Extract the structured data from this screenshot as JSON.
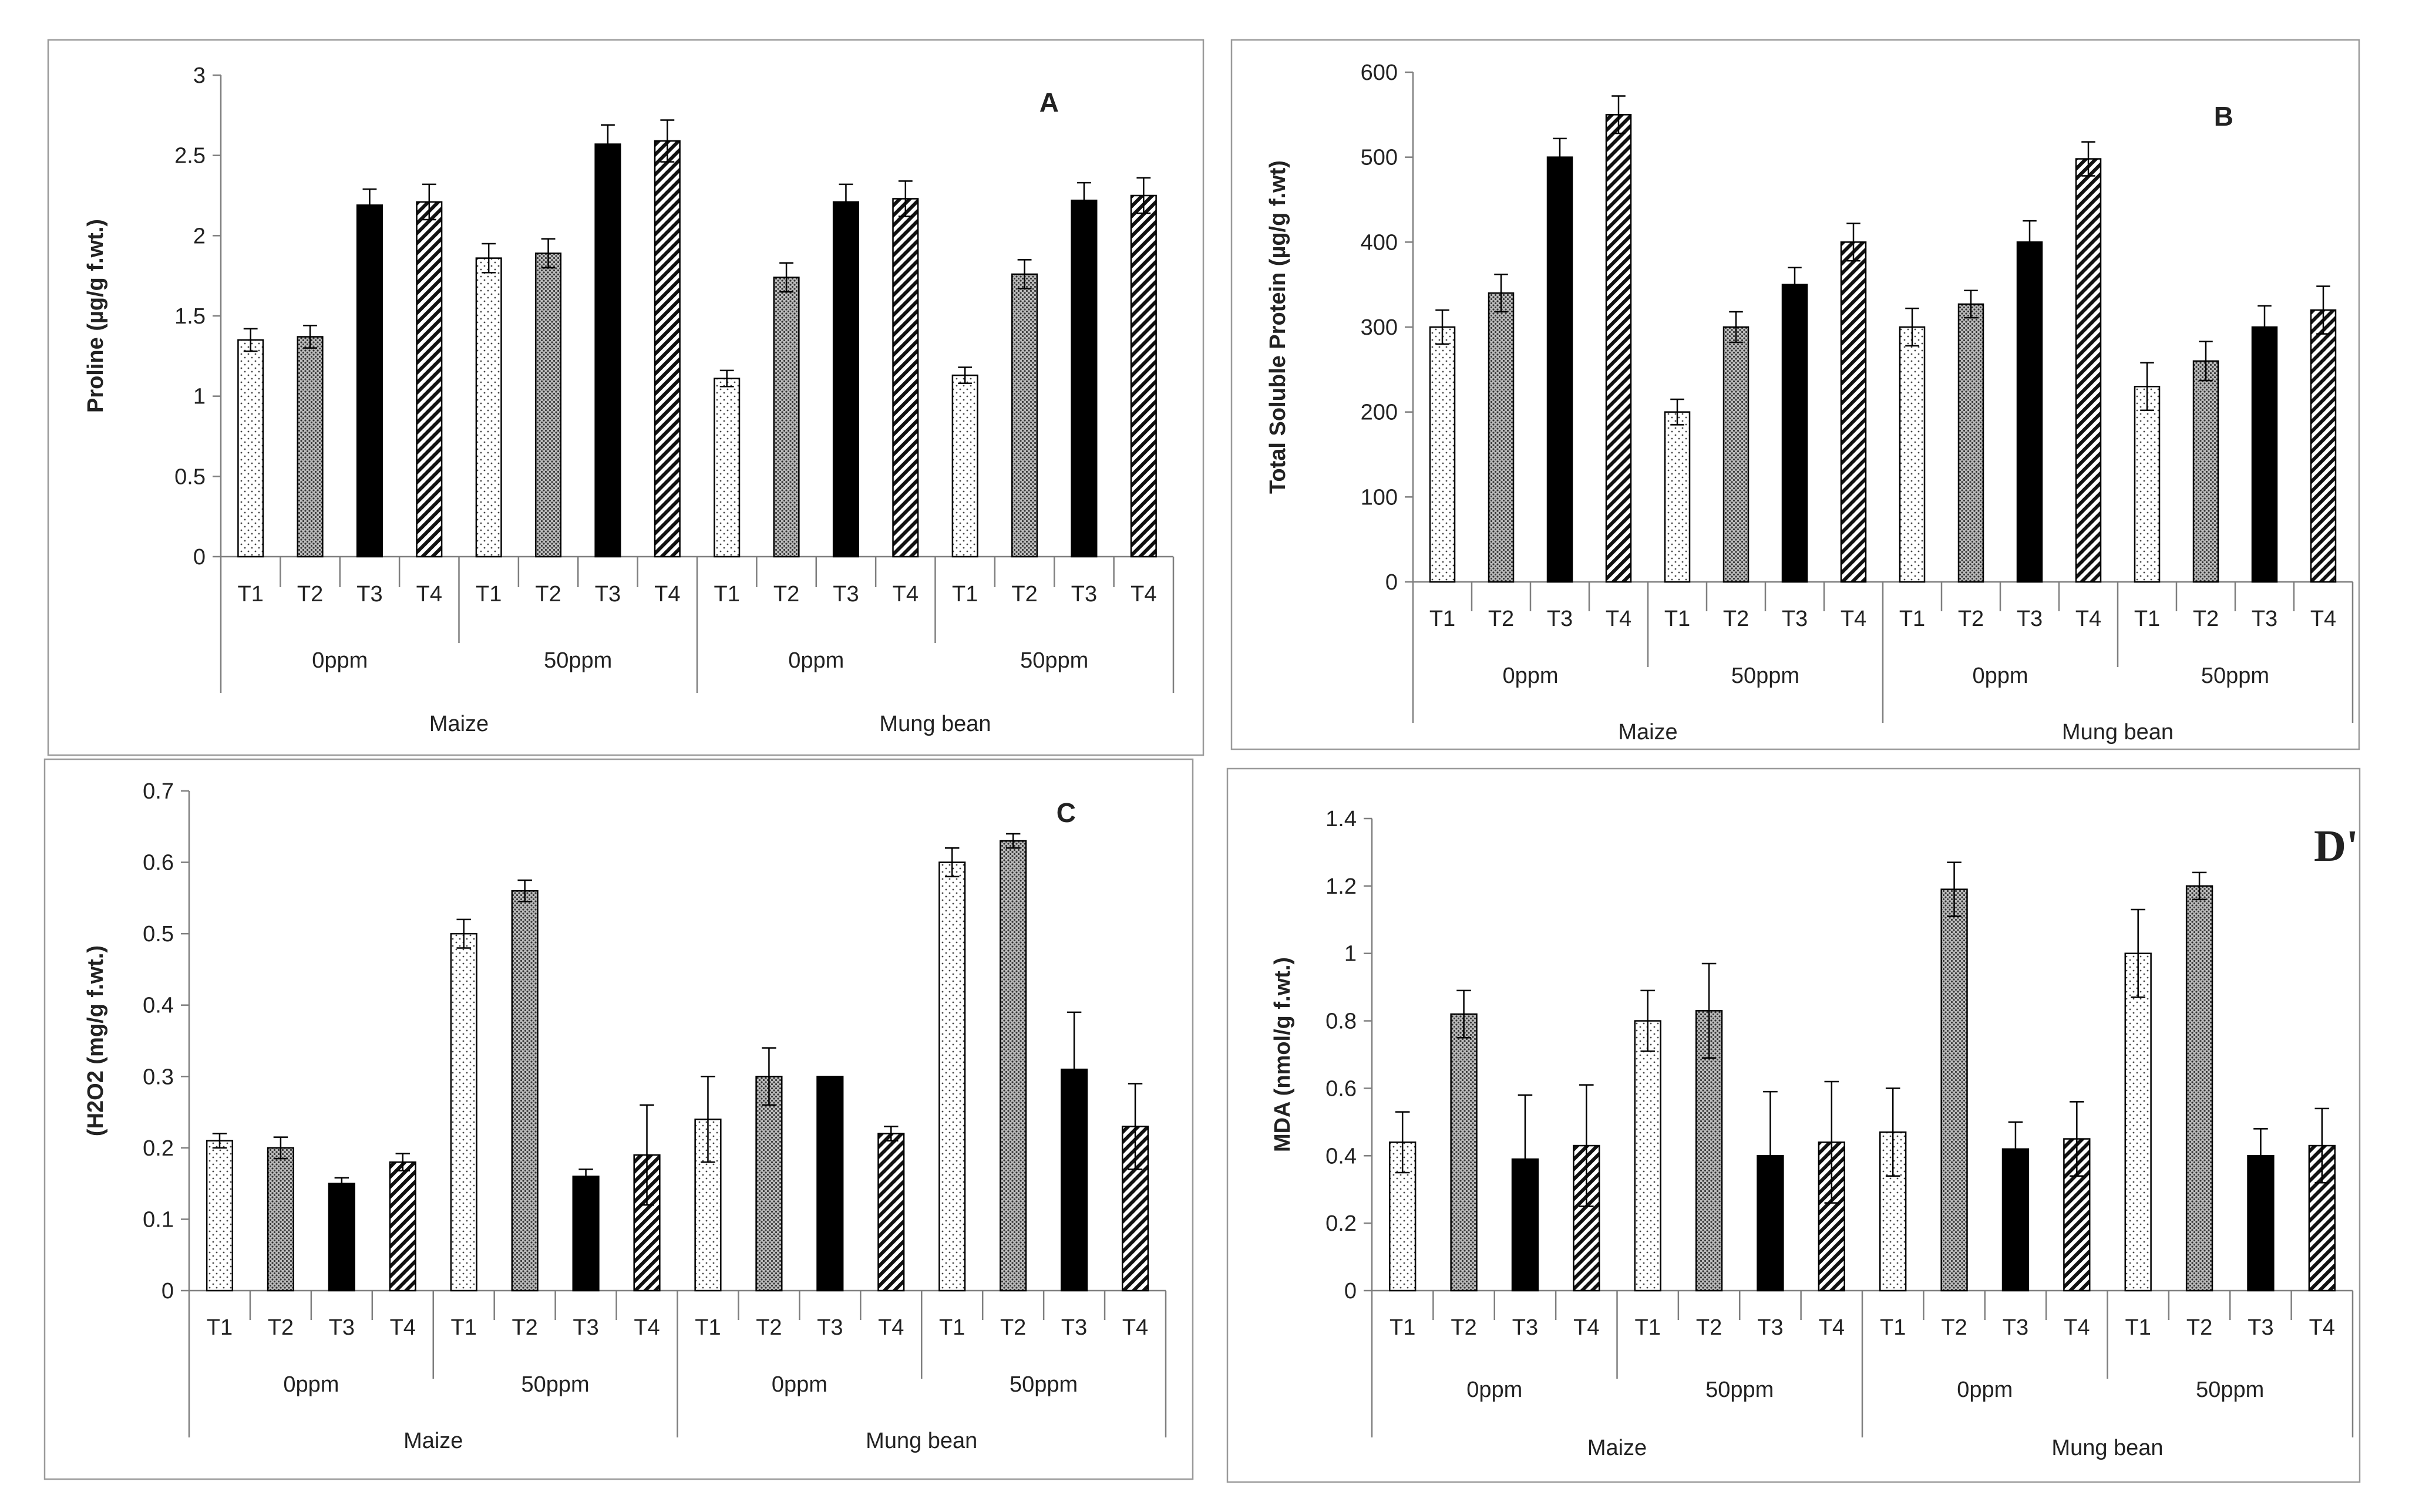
{
  "chart_data": [
    {
      "type": "bar",
      "panel": "A",
      "ylabel": "Proline (µg/g f.wt.)",
      "ylim": [
        0,
        3
      ],
      "yticks": [
        "0",
        "0.5",
        "1",
        "1.5",
        "2",
        "2.5",
        "3"
      ],
      "ytick_values": [
        0,
        0.5,
        1,
        1.5,
        2,
        2.5,
        3
      ],
      "treatments": [
        "T1",
        "T2",
        "T3",
        "T4"
      ],
      "levels": [
        "0ppm",
        "50ppm",
        "0ppm",
        "50ppm"
      ],
      "crops": [
        "Maize",
        "Mung bean"
      ],
      "values": [
        1.35,
        1.37,
        2.19,
        2.21,
        1.86,
        1.89,
        2.57,
        2.59,
        1.11,
        1.74,
        2.21,
        2.23,
        1.13,
        1.76,
        2.22,
        2.25
      ],
      "errors": [
        0.07,
        0.07,
        0.1,
        0.11,
        0.09,
        0.09,
        0.12,
        0.13,
        0.05,
        0.09,
        0.11,
        0.11,
        0.05,
        0.09,
        0.11,
        0.11
      ]
    },
    {
      "type": "bar",
      "panel": "B",
      "ylabel": "Total Soluble Protein (µg/g f.wt)",
      "ylim": [
        0,
        600
      ],
      "yticks": [
        "0",
        "100",
        "200",
        "300",
        "400",
        "500",
        "600"
      ],
      "ytick_values": [
        0,
        100,
        200,
        300,
        400,
        500,
        600
      ],
      "treatments": [
        "T1",
        "T2",
        "T3",
        "T4"
      ],
      "levels": [
        "0ppm",
        "50ppm",
        "0ppm",
        "50ppm"
      ],
      "crops": [
        "Maize",
        "Mung bean"
      ],
      "values": [
        300,
        340,
        500,
        550,
        200,
        300,
        350,
        400,
        300,
        327,
        400,
        498,
        230,
        260,
        300,
        320
      ],
      "errors": [
        20,
        22,
        22,
        22,
        15,
        18,
        20,
        22,
        22,
        16,
        25,
        20,
        28,
        23,
        25,
        28
      ]
    },
    {
      "type": "bar",
      "panel": "C",
      "ylabel": "(H2O2 (mg/g f.wt.)",
      "ylim": [
        0,
        0.7
      ],
      "yticks": [
        "0",
        "0.1",
        "0.2",
        "0.3",
        "0.4",
        "0.5",
        "0.6",
        "0.7"
      ],
      "ytick_values": [
        0,
        0.1,
        0.2,
        0.3,
        0.4,
        0.5,
        0.6,
        0.7
      ],
      "treatments": [
        "T1",
        "T2",
        "T3",
        "T4"
      ],
      "levels": [
        "0ppm",
        "50ppm",
        "0ppm",
        "50ppm"
      ],
      "crops": [
        "Maize",
        "Mung bean"
      ],
      "values": [
        0.21,
        0.2,
        0.15,
        0.18,
        0.5,
        0.56,
        0.16,
        0.19,
        0.24,
        0.3,
        0.3,
        0.22,
        0.6,
        0.63,
        0.31,
        0.23
      ],
      "errors": [
        0.01,
        0.015,
        0.008,
        0.012,
        0.02,
        0.015,
        0.01,
        0.07,
        0.06,
        0.04,
        0,
        0.01,
        0.02,
        0.01,
        0.08,
        0.06
      ]
    },
    {
      "type": "bar",
      "panel": "D'",
      "ylabel": "MDA (nmol/g f.wt.)",
      "ylim": [
        0,
        1.4
      ],
      "yticks": [
        "0",
        "0.2",
        "0.4",
        "0.6",
        "0.8",
        "1",
        "1.2",
        "1.4"
      ],
      "ytick_values": [
        0,
        0.2,
        0.4,
        0.6,
        0.8,
        1,
        1.2,
        1.4
      ],
      "treatments": [
        "T1",
        "T2",
        "T3",
        "T4"
      ],
      "levels": [
        "0ppm",
        "50ppm",
        "0ppm",
        "50ppm"
      ],
      "crops": [
        "Maize",
        "Mung bean"
      ],
      "values": [
        0.44,
        0.82,
        0.39,
        0.43,
        0.8,
        0.83,
        0.4,
        0.44,
        0.47,
        1.19,
        0.42,
        0.45,
        1.0,
        1.2,
        0.4,
        0.43
      ],
      "errors": [
        0.09,
        0.07,
        0.19,
        0.18,
        0.09,
        0.14,
        0.19,
        0.18,
        0.13,
        0.08,
        0.08,
        0.11,
        0.13,
        0.04,
        0.08,
        0.11
      ]
    }
  ],
  "colors": {
    "axis": "#7f7f7f",
    "bar_edge": "#000000",
    "text": "#222222",
    "frame": "#9a9a9a"
  },
  "patterns": [
    "dots-sparse",
    "dots-dense",
    "solid-black",
    "diagonal-hatch"
  ]
}
